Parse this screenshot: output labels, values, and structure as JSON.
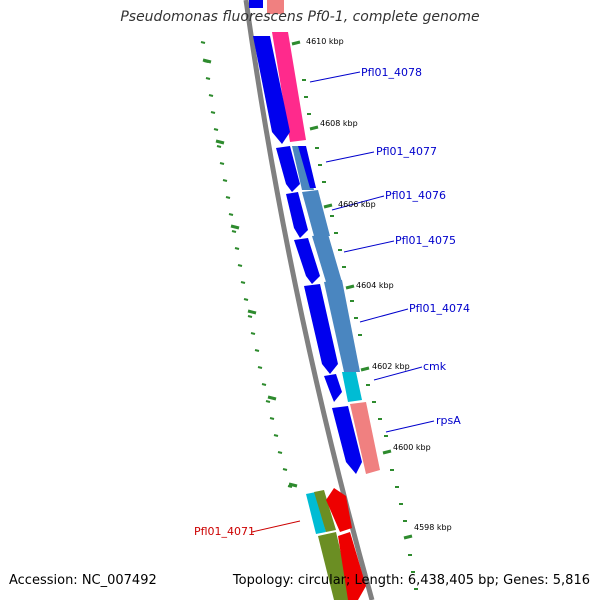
{
  "title": "Pseudomonas fluorescens Pf0-1, complete genome",
  "footer": {
    "accession": "Accession: NC_007492",
    "summary": "Topology: circular; Length: 6,438,405 bp; Genes: 5,816"
  },
  "scale_labels": [
    "4610 kbp",
    "4608 kbp",
    "4606 kbp",
    "4604 kbp",
    "4602 kbp",
    "4600 kbp",
    "4598 kbp"
  ],
  "gene_labels": [
    {
      "text": "Pfl01_4078",
      "color": "#0000cc"
    },
    {
      "text": "Pfl01_4077",
      "color": "#0000cc"
    },
    {
      "text": "Pfl01_4076",
      "color": "#0000cc"
    },
    {
      "text": "Pfl01_4075",
      "color": "#0000cc"
    },
    {
      "text": "Pfl01_4074",
      "color": "#0000cc"
    },
    {
      "text": "cmk",
      "color": "#0000cc"
    },
    {
      "text": "rpsA",
      "color": "#0000cc"
    },
    {
      "text": "Pfl01_4071",
      "color": "#cc0000"
    }
  ],
  "colors": {
    "backbone": "#808080",
    "cds_strand": "#0000ee",
    "tick": "#2e8b2e",
    "gene_pink": "#ff2a8c",
    "gene_steel": "#4a86c0",
    "gene_cyan": "#00bcd4",
    "gene_salmon": "#f08080",
    "gene_olive": "#6b8e23",
    "gene_red": "#ee0000"
  }
}
